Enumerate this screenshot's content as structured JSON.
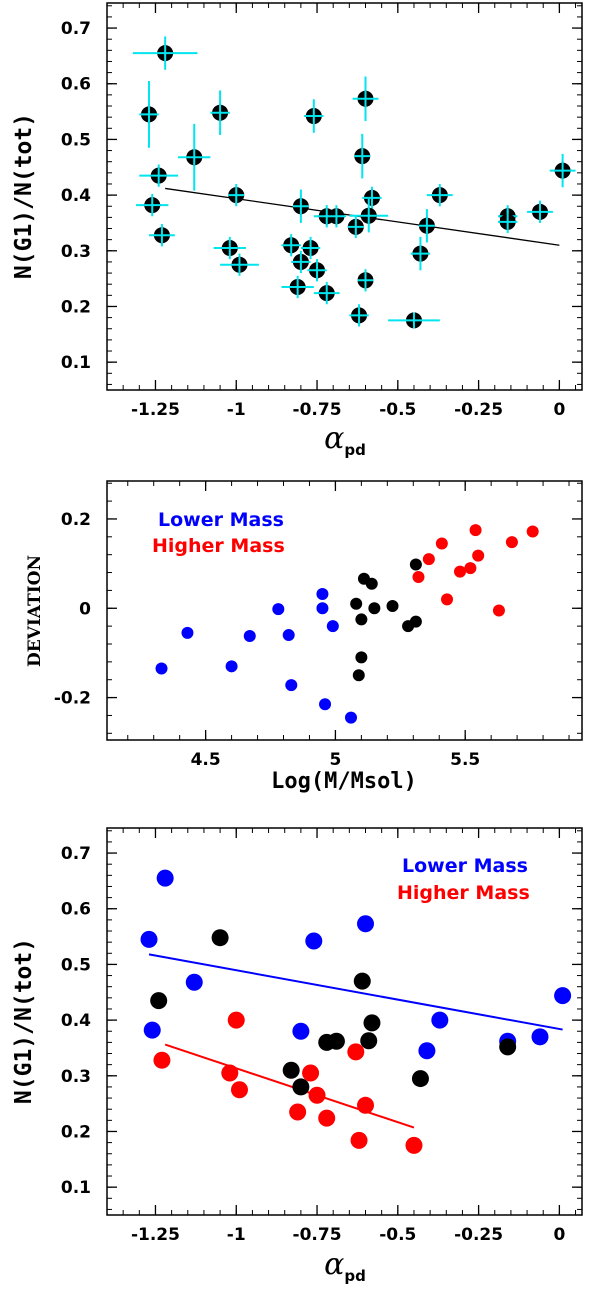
{
  "chart_data": [
    {
      "type": "scatter",
      "xlabel": "α",
      "xlabel_sub": "pd",
      "ylabel": "N(G1)/N(tot)",
      "xlim": [
        -1.4,
        0.07
      ],
      "ylim": [
        0.05,
        0.745
      ],
      "xticks": [
        -1.25,
        -1,
        -0.75,
        -0.5,
        -0.25,
        0
      ],
      "xticklabels": [
        "-1.25",
        "-1",
        "-0.75",
        "-0.5",
        "-0.25",
        "0"
      ],
      "yticks": [
        0.1,
        0.2,
        0.3,
        0.4,
        0.5,
        0.6,
        0.7
      ],
      "yticklabels": [
        "0.1",
        "0.2",
        "0.3",
        "0.4",
        "0.5",
        "0.6",
        "0.7"
      ],
      "colors": {
        "point": "#000000",
        "error": "#00e5ee",
        "fit": "#000000"
      },
      "fit_line": {
        "x": [
          -1.22,
          0
        ],
        "y": [
          0.412,
          0.31
        ]
      },
      "points": [
        {
          "x": -1.22,
          "y": 0.655,
          "xerr": 0.1,
          "yerr": 0.03
        },
        {
          "x": -1.27,
          "y": 0.545,
          "xerr": 0.03,
          "yerr": 0.06
        },
        {
          "x": -1.05,
          "y": 0.548,
          "xerr": 0.03,
          "yerr": 0.04
        },
        {
          "x": -1.13,
          "y": 0.468,
          "xerr": 0.05,
          "yerr": 0.06
        },
        {
          "x": -1.24,
          "y": 0.435,
          "xerr": 0.06,
          "yerr": 0.02
        },
        {
          "x": -1.26,
          "y": 0.382,
          "xerr": 0.05,
          "yerr": 0.02
        },
        {
          "x": -1.23,
          "y": 0.328,
          "xerr": 0.04,
          "yerr": 0.02
        },
        {
          "x": -1.0,
          "y": 0.4,
          "xerr": 0.02,
          "yerr": 0.02
        },
        {
          "x": -1.02,
          "y": 0.305,
          "xerr": 0.05,
          "yerr": 0.02
        },
        {
          "x": -0.99,
          "y": 0.275,
          "xerr": 0.06,
          "yerr": 0.02
        },
        {
          "x": -0.76,
          "y": 0.542,
          "xerr": 0.03,
          "yerr": 0.03
        },
        {
          "x": -0.6,
          "y": 0.573,
          "xerr": 0.04,
          "yerr": 0.04
        },
        {
          "x": -0.61,
          "y": 0.47,
          "xerr": 0.02,
          "yerr": 0.04
        },
        {
          "x": -0.8,
          "y": 0.38,
          "xerr": 0.02,
          "yerr": 0.03
        },
        {
          "x": -0.72,
          "y": 0.362,
          "xerr": 0.04,
          "yerr": 0.02
        },
        {
          "x": -0.69,
          "y": 0.362,
          "xerr": 0.03,
          "yerr": 0.02
        },
        {
          "x": -0.63,
          "y": 0.343,
          "xerr": 0.02,
          "yerr": 0.02
        },
        {
          "x": -0.58,
          "y": 0.395,
          "xerr": 0.03,
          "yerr": 0.02
        },
        {
          "x": -0.59,
          "y": 0.363,
          "xerr": 0.06,
          "yerr": 0.03
        },
        {
          "x": -0.83,
          "y": 0.31,
          "xerr": 0.03,
          "yerr": 0.02
        },
        {
          "x": -0.77,
          "y": 0.305,
          "xerr": 0.03,
          "yerr": 0.02
        },
        {
          "x": -0.8,
          "y": 0.28,
          "xerr": 0.03,
          "yerr": 0.02
        },
        {
          "x": -0.75,
          "y": 0.265,
          "xerr": 0.03,
          "yerr": 0.02
        },
        {
          "x": -0.81,
          "y": 0.235,
          "xerr": 0.05,
          "yerr": 0.02
        },
        {
          "x": -0.72,
          "y": 0.224,
          "xerr": 0.04,
          "yerr": 0.02
        },
        {
          "x": -0.6,
          "y": 0.247,
          "xerr": 0.02,
          "yerr": 0.02
        },
        {
          "x": -0.62,
          "y": 0.184,
          "xerr": 0.03,
          "yerr": 0.02
        },
        {
          "x": -0.45,
          "y": 0.175,
          "xerr": 0.08,
          "yerr": 0.01
        },
        {
          "x": -0.37,
          "y": 0.4,
          "xerr": 0.04,
          "yerr": 0.02
        },
        {
          "x": -0.41,
          "y": 0.345,
          "xerr": 0.02,
          "yerr": 0.03
        },
        {
          "x": -0.43,
          "y": 0.295,
          "xerr": 0.03,
          "yerr": 0.03
        },
        {
          "x": -0.16,
          "y": 0.362,
          "xerr": 0.03,
          "yerr": 0.02
        },
        {
          "x": -0.16,
          "y": 0.352,
          "xerr": 0.03,
          "yerr": 0.02
        },
        {
          "x": -0.06,
          "y": 0.37,
          "xerr": 0.04,
          "yerr": 0.02
        },
        {
          "x": 0.01,
          "y": 0.444,
          "xerr": 0.04,
          "yerr": 0.03
        }
      ]
    },
    {
      "type": "scatter",
      "xlabel": "Log(M/Msol)",
      "ylabel": "DEVIATION",
      "xlim": [
        4.12,
        5.95
      ],
      "ylim": [
        -0.295,
        0.285
      ],
      "xticks": [
        4.5,
        5,
        5.5
      ],
      "xticklabels": [
        "4.5",
        "5",
        "5.5"
      ],
      "yticks": [
        -0.2,
        0,
        0.2
      ],
      "yticklabels": [
        "-0.2",
        "0",
        "0.2"
      ],
      "legend": [
        {
          "label": "Lower Mass",
          "color": "#0000ff"
        },
        {
          "label": "Higher Mass",
          "color": "#ff0000"
        }
      ],
      "legend_position": "top-left",
      "series": [
        {
          "color": "#0000ff",
          "x": [
            4.33,
            4.43,
            4.6,
            4.67,
            4.78,
            4.82,
            4.83,
            4.95,
            4.95,
            4.96,
            4.99,
            5.06
          ],
          "y": [
            -0.135,
            -0.055,
            -0.13,
            -0.062,
            -0.002,
            -0.06,
            -0.172,
            0.032,
            0.0,
            -0.215,
            -0.04,
            -0.245
          ]
        },
        {
          "color": "#000000",
          "x": [
            5.08,
            5.09,
            5.1,
            5.1,
            5.11,
            5.14,
            5.15,
            5.22,
            5.28,
            5.31,
            5.31
          ],
          "y": [
            0.01,
            -0.15,
            -0.025,
            -0.11,
            0.066,
            0.055,
            0.0,
            0.005,
            -0.04,
            0.098,
            -0.03
          ]
        },
        {
          "color": "#ff0000",
          "x": [
            5.32,
            5.36,
            5.41,
            5.43,
            5.48,
            5.52,
            5.54,
            5.55,
            5.63,
            5.68,
            5.76
          ],
          "y": [
            0.07,
            0.11,
            0.145,
            0.02,
            0.082,
            0.09,
            0.175,
            0.118,
            -0.005,
            0.148,
            0.172
          ]
        }
      ]
    },
    {
      "type": "scatter",
      "xlabel": "α",
      "xlabel_sub": "pd",
      "ylabel": "N(G1)/N(tot)",
      "xlim": [
        -1.4,
        0.07
      ],
      "ylim": [
        0.05,
        0.745
      ],
      "xticks": [
        -1.25,
        -1,
        -0.75,
        -0.5,
        -0.25,
        0
      ],
      "xticklabels": [
        "-1.25",
        "-1",
        "-0.75",
        "-0.5",
        "-0.25",
        "0"
      ],
      "yticks": [
        0.1,
        0.2,
        0.3,
        0.4,
        0.5,
        0.6,
        0.7
      ],
      "yticklabels": [
        "0.1",
        "0.2",
        "0.3",
        "0.4",
        "0.5",
        "0.6",
        "0.7"
      ],
      "legend": [
        {
          "label": "Lower Mass",
          "color": "#0000ff"
        },
        {
          "label": "Higher Mass",
          "color": "#ff0000"
        }
      ],
      "legend_position": "top-right",
      "fit_lines": [
        {
          "color": "#0000ff",
          "x": [
            -1.27,
            0.01
          ],
          "y": [
            0.518,
            0.383
          ]
        },
        {
          "color": "#ff0000",
          "x": [
            -1.22,
            -0.45
          ],
          "y": [
            0.356,
            0.207
          ]
        }
      ],
      "series": [
        {
          "color": "#0000ff",
          "x": [
            -1.22,
            -1.27,
            -1.13,
            -1.26,
            -0.8,
            -0.76,
            -0.6,
            -0.41,
            -0.37,
            -0.16,
            -0.06,
            0.01
          ],
          "y": [
            0.655,
            0.545,
            0.468,
            0.382,
            0.38,
            0.542,
            0.573,
            0.345,
            0.4,
            0.362,
            0.37,
            0.444
          ]
        },
        {
          "color": "#000000",
          "x": [
            -1.24,
            -1.05,
            -0.83,
            -0.8,
            -0.72,
            -0.69,
            -0.61,
            -0.59,
            -0.58,
            -0.43,
            -0.16
          ],
          "y": [
            0.435,
            0.548,
            0.31,
            0.28,
            0.36,
            0.362,
            0.47,
            0.363,
            0.395,
            0.295,
            0.352
          ]
        },
        {
          "color": "#ff0000",
          "x": [
            -1.23,
            -1.0,
            -1.02,
            -0.99,
            -0.81,
            -0.77,
            -0.75,
            -0.72,
            -0.63,
            -0.62,
            -0.6,
            -0.45
          ],
          "y": [
            0.328,
            0.4,
            0.305,
            0.275,
            0.235,
            0.305,
            0.265,
            0.224,
            0.343,
            0.184,
            0.247,
            0.175
          ]
        }
      ]
    }
  ]
}
